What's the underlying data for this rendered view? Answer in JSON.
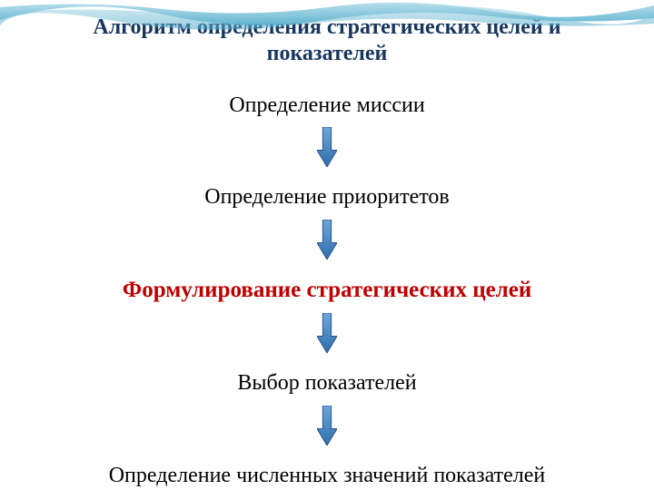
{
  "title": {
    "line1": "Алгоритм определения стратегических целей и",
    "line2": "показателей",
    "color": "#17365d",
    "fontsize": 24,
    "weight": "bold"
  },
  "steps": [
    {
      "text": "Определение миссии",
      "color": "#000000",
      "fontsize": 24,
      "weight": "normal"
    },
    {
      "text": "Определение приоритетов",
      "color": "#000000",
      "fontsize": 24,
      "weight": "normal"
    },
    {
      "text": "Формулирование стратегических целей",
      "color": "#c00000",
      "fontsize": 25,
      "weight": "bold"
    },
    {
      "text": "Выбор показателей",
      "color": "#000000",
      "fontsize": 24,
      "weight": "normal"
    },
    {
      "text": "Определение численных значений показателей",
      "color": "#000000",
      "fontsize": 24,
      "weight": "normal"
    }
  ],
  "arrow": {
    "fill_top": "#6ba8dc",
    "fill_bottom": "#2f6eaa",
    "stroke": "#2f528f",
    "width": 22,
    "height": 44
  },
  "wave": {
    "color_light": "#a8d8e8",
    "color_dark": "#4aa8c8"
  },
  "background": "#ffffff"
}
